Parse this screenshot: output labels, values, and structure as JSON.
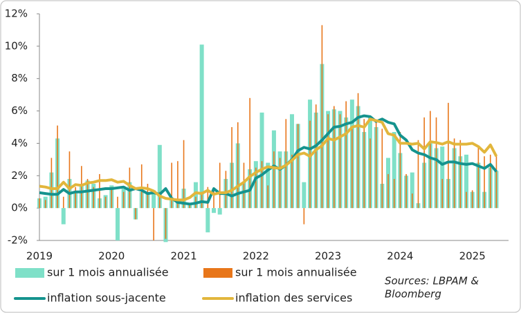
{
  "chart_data": {
    "type": "bar",
    "categories": [
      "2019",
      null,
      null,
      null,
      null,
      null,
      null,
      null,
      null,
      null,
      null,
      null,
      "2020",
      null,
      null,
      null,
      null,
      null,
      null,
      null,
      null,
      null,
      null,
      null,
      "2021",
      null,
      null,
      null,
      null,
      null,
      null,
      null,
      null,
      null,
      null,
      null,
      "2022",
      null,
      null,
      null,
      null,
      null,
      null,
      null,
      null,
      null,
      null,
      null,
      "2023",
      null,
      null,
      null,
      null,
      null,
      null,
      null,
      null,
      null,
      null,
      null,
      "2024",
      null,
      null,
      null,
      null,
      null,
      null,
      null,
      null,
      null,
      null,
      null,
      "2025",
      null,
      null,
      null,
      null
    ],
    "ylim": [
      -2,
      12
    ],
    "yticks": [
      {
        "value": -2,
        "label": "-2%"
      },
      {
        "value": 0,
        "label": "0%"
      },
      {
        "value": 2,
        "label": "2%"
      },
      {
        "value": 4,
        "label": "4%"
      },
      {
        "value": 6,
        "label": "6%"
      },
      {
        "value": 8,
        "label": "8%"
      },
      {
        "value": 10,
        "label": "10%"
      },
      {
        "value": 12,
        "label": "12%"
      }
    ],
    "series": [
      {
        "name": "sur 1 mois annualisée",
        "type": "bar",
        "color": "#7fe0c8",
        "values": [
          0.6,
          0.7,
          2.2,
          4.3,
          -1.0,
          1.8,
          1.0,
          1.5,
          1.7,
          1.5,
          0.6,
          0.8,
          1.4,
          -2.0,
          1.2,
          1.6,
          -0.7,
          1.0,
          0.9,
          1.1,
          3.9,
          -2.1,
          0.5,
          0.4,
          1.2,
          0.3,
          1.6,
          10.1,
          -1.5,
          -0.3,
          -0.4,
          1.8,
          2.8,
          4.0,
          1.6,
          2.4,
          2.9,
          5.9,
          2.8,
          4.8,
          3.5,
          3.5,
          5.8,
          5.2,
          1.6,
          6.7,
          5.9,
          8.9,
          6.0,
          6.1,
          6.0,
          5.6,
          6.7,
          6.3,
          4.7,
          5.6,
          5.0,
          1.5,
          3.1,
          4.7,
          3.4,
          2.0,
          2.2,
          0.3,
          2.8,
          4.0,
          3.7,
          3.8,
          1.8,
          3.7,
          3.2,
          3.3,
          1.0,
          2.8,
          1.0,
          2.5,
          2.3
        ]
      },
      {
        "name": "sur 1 mois annualisée",
        "type": "bar",
        "color": "#e8761a",
        "values": [
          0.6,
          0.5,
          3.1,
          5.1,
          0.7,
          3.5,
          1.3,
          2.6,
          1.8,
          1.3,
          2.1,
          0.7,
          1.3,
          0.7,
          1.0,
          2.5,
          -0.7,
          2.7,
          1.5,
          -2.0,
          1.0,
          -1.9,
          2.8,
          2.9,
          4.2,
          0.2,
          0.7,
          1.0,
          1.3,
          1.2,
          2.8,
          2.3,
          5.0,
          5.3,
          2.8,
          6.8,
          2.5,
          2.9,
          1.4,
          3.5,
          3.1,
          5.5,
          3.3,
          5.2,
          -1.0,
          5.4,
          6.4,
          11.3,
          5.8,
          6.3,
          5.8,
          6.6,
          4.9,
          7.1,
          5.5,
          4.3,
          5.3,
          4.9,
          2.1,
          1.8,
          4.7,
          2.1,
          0.9,
          4.2,
          5.6,
          6.0,
          5.6,
          1.8,
          6.5,
          4.3,
          4.2,
          1.0,
          1.1,
          3.8,
          3.2,
          3.3,
          3.2
        ]
      },
      {
        "name": "inflation sous-jacente",
        "type": "line",
        "color": "#15938e",
        "values": [
          0.95,
          0.9,
          0.85,
          0.85,
          1.15,
          0.9,
          1.0,
          1.0,
          1.05,
          1.1,
          1.15,
          1.2,
          1.2,
          1.25,
          1.3,
          1.1,
          1.2,
          1.1,
          0.9,
          0.95,
          0.85,
          1.2,
          0.6,
          0.35,
          0.3,
          0.25,
          0.3,
          0.4,
          0.35,
          1.2,
          0.9,
          0.9,
          0.75,
          0.9,
          1.0,
          1.1,
          1.85,
          2.05,
          2.35,
          2.6,
          2.4,
          2.65,
          3.0,
          3.55,
          3.75,
          3.65,
          3.85,
          4.2,
          4.6,
          5.0,
          5.05,
          5.2,
          5.3,
          5.6,
          5.7,
          5.65,
          5.35,
          5.5,
          5.3,
          5.2,
          4.5,
          4.2,
          3.6,
          3.4,
          3.3,
          3.1,
          3.0,
          2.7,
          2.85,
          2.85,
          2.75,
          2.7,
          2.75,
          2.6,
          2.45,
          2.7,
          2.25
        ]
      },
      {
        "name": "inflation des services",
        "type": "line",
        "color": "#e2b63c",
        "values": [
          1.35,
          1.3,
          1.2,
          1.2,
          1.6,
          1.2,
          1.45,
          1.4,
          1.55,
          1.6,
          1.7,
          1.7,
          1.75,
          1.6,
          1.65,
          1.4,
          1.2,
          1.25,
          1.2,
          1.05,
          0.75,
          0.6,
          0.55,
          0.5,
          0.5,
          0.65,
          0.95,
          0.9,
          1.1,
          0.85,
          0.95,
          0.95,
          1.1,
          1.35,
          1.6,
          1.95,
          2.2,
          2.4,
          2.55,
          2.5,
          2.45,
          2.65,
          2.95,
          3.3,
          3.4,
          3.2,
          3.6,
          3.85,
          4.3,
          4.2,
          4.4,
          4.6,
          5.0,
          5.1,
          5.0,
          5.5,
          5.4,
          5.3,
          4.6,
          4.5,
          4.0,
          4.0,
          3.95,
          4.0,
          3.65,
          4.1,
          4.05,
          3.95,
          4.1,
          3.95,
          3.95,
          3.95,
          4.0,
          3.8,
          3.45,
          3.9,
          3.2
        ]
      }
    ],
    "source_lines": [
      "Sources: LBPAM &",
      "Bloomberg"
    ]
  }
}
